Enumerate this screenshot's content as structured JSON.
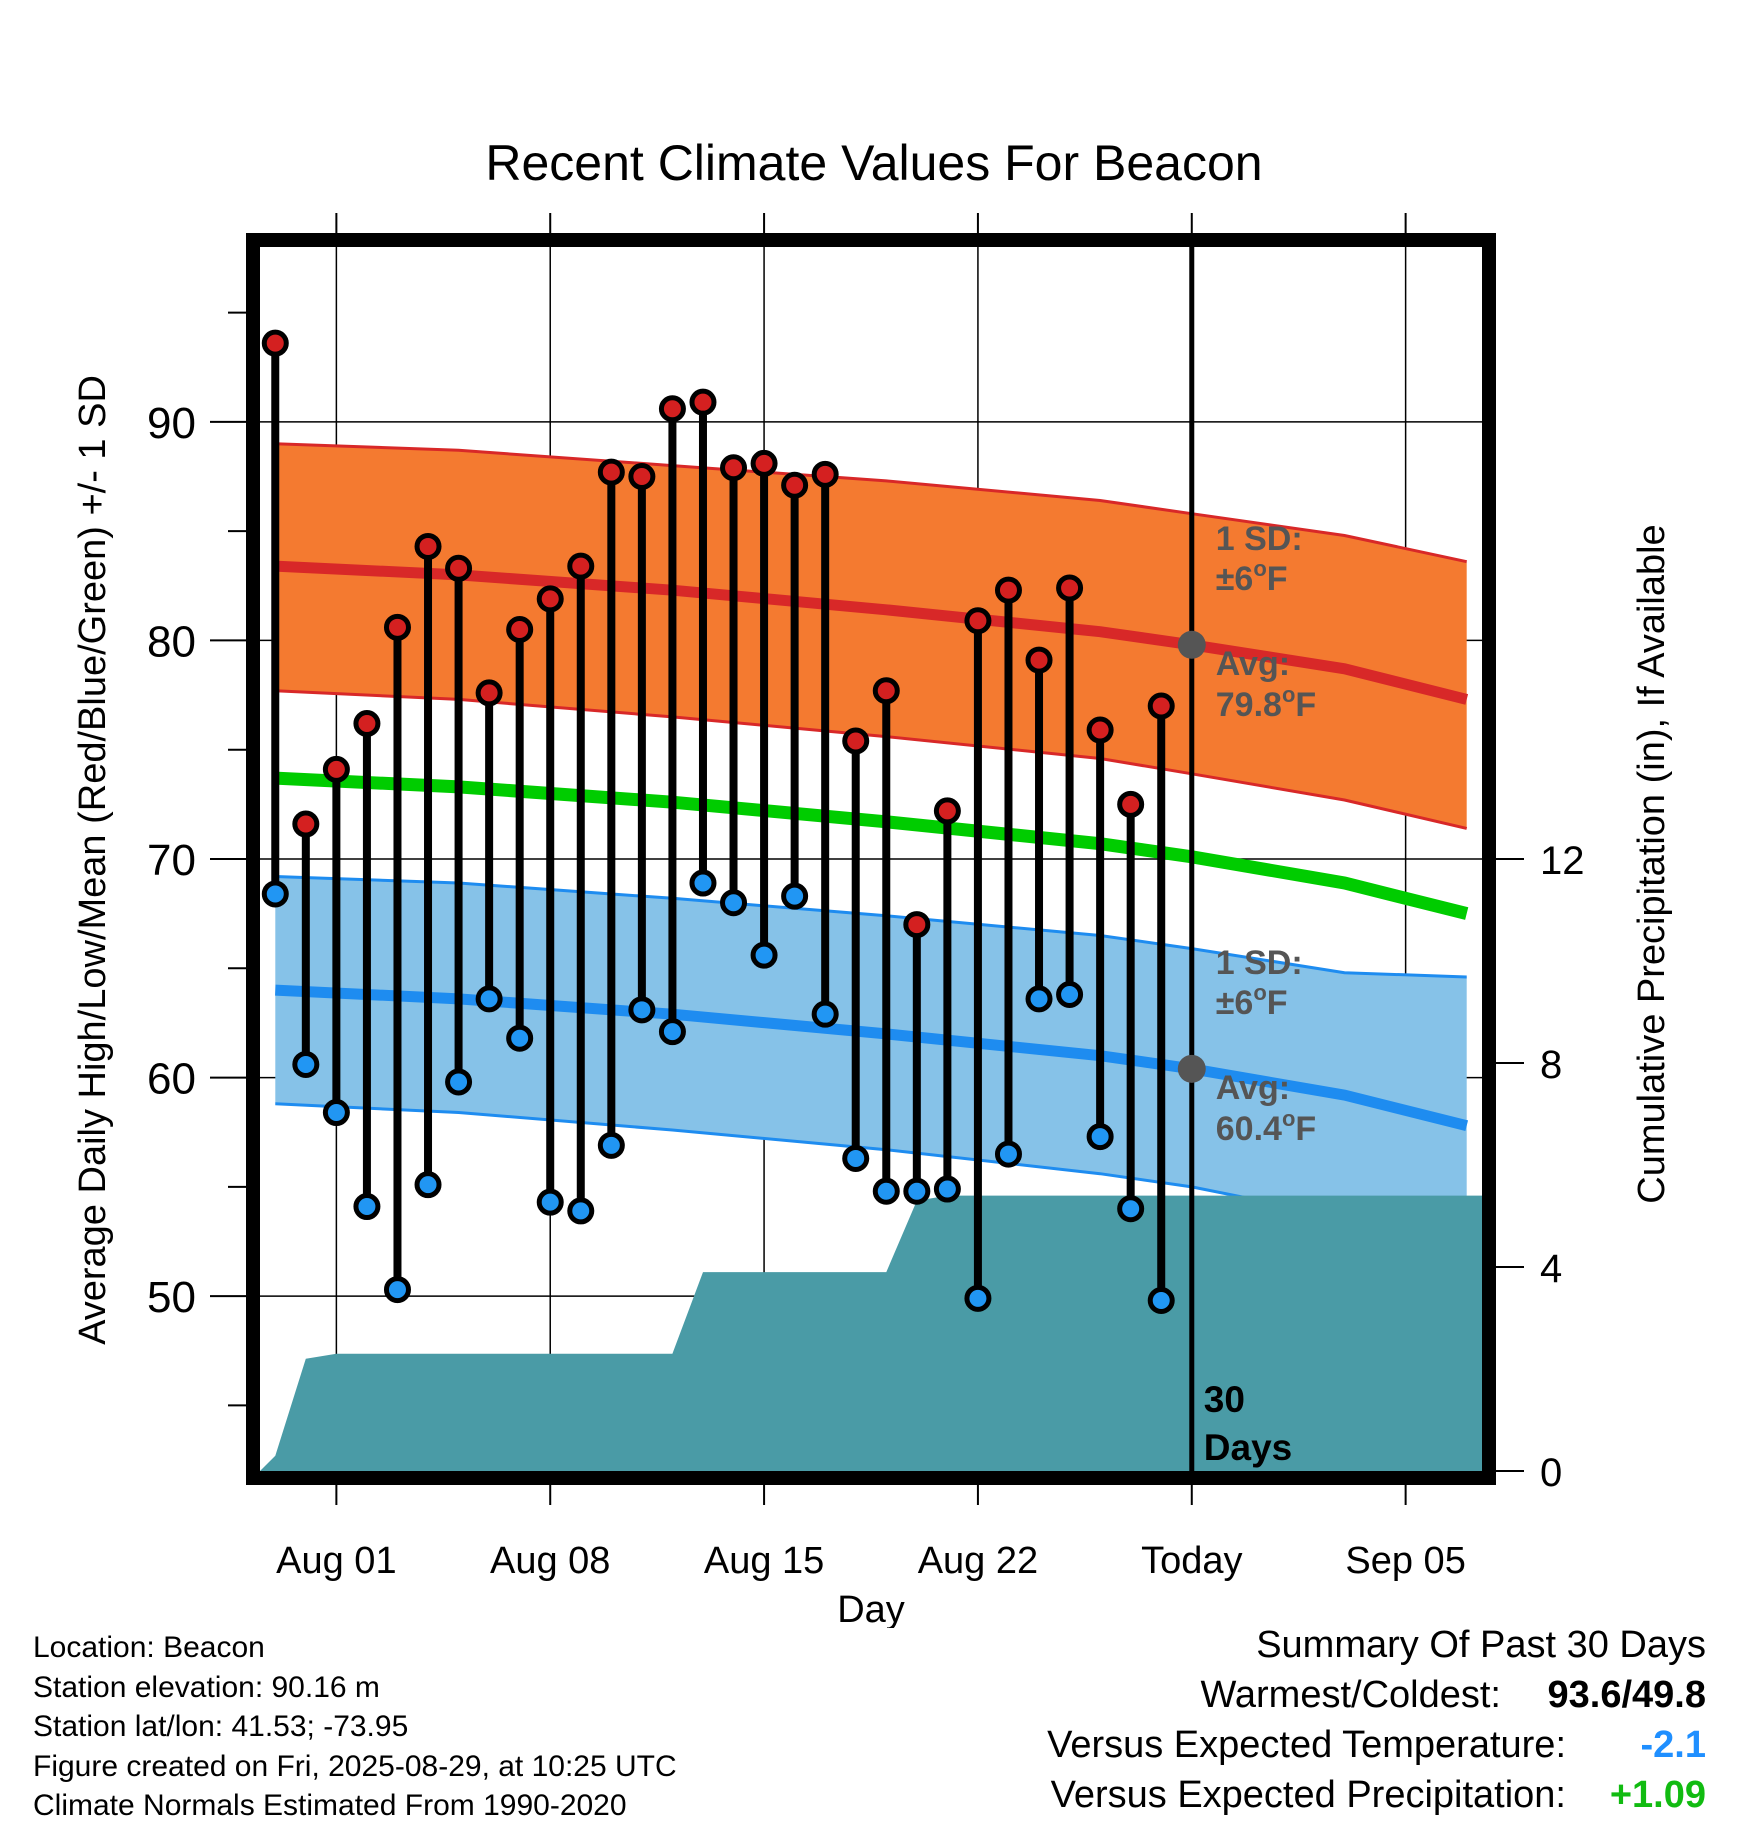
{
  "page": {
    "footer": [
      "Location: Beacon",
      "Station elevation: 90.16 m",
      "Station lat/lon: 41.53; -73.95",
      "Figure created on Fri, 2025-08-29, at 10:25 UTC",
      "Climate Normals Estimated From 1990-2020"
    ],
    "summary": {
      "heading": "Summary Of Past 30 Days",
      "warmest_coldest_label": "Warmest/Coldest:",
      "warmest_coldest_value": "93.6/49.8",
      "temp_label": "Versus Expected Temperature:",
      "temp_value": "-2.1",
      "temp_color": "#1f8fff",
      "precip_label": "Versus Expected Precipitation:",
      "precip_value": "+1.09",
      "precip_color": "#11bb11"
    }
  },
  "chart_data": {
    "type": "line",
    "title": "Recent Climate Values For Beacon",
    "xlabel": "Day",
    "ylabel": "Average Daily High/Low/Mean (Red/Blue/Green) +/- 1 SD",
    "ylabel_right": "Cumulative Precipitation (in), If Available",
    "x_tick_labels": [
      "Aug 01",
      "Aug 08",
      "Aug 15",
      "Aug 22",
      "Today",
      "Sep 05"
    ],
    "x_tick_dates": [
      "2025-08-01",
      "2025-08-08",
      "2025-08-15",
      "2025-08-22",
      "2025-08-29",
      "2025-09-05"
    ],
    "xlim": [
      "2025-07-29 12:00",
      "2025-09-07 12:00"
    ],
    "ylim": [
      42,
      98
    ],
    "y_ticks": [
      50,
      60,
      70,
      80,
      90
    ],
    "y_tick_labels": [
      "50",
      "60",
      "70",
      "80",
      "90"
    ],
    "y2lim": [
      0,
      24
    ],
    "y2_ticks": [
      0,
      4,
      8,
      12
    ],
    "y2_tick_labels": [
      "0",
      "4",
      "8",
      "12"
    ],
    "grid": true,
    "today_marker": {
      "date": "2025-08-29",
      "label": "30 Days"
    },
    "colors": {
      "high_band": "#f47a30",
      "high_line": "#d82828",
      "low_band": "#86c2e8",
      "low_line": "#1e8cf0",
      "mean_line": "#00cc00",
      "precip_fill": "#4a9ba6",
      "high_marker": "#d42020",
      "low_marker": "#2196f3",
      "annotation": "#555555"
    },
    "normal_high": {
      "name": "High",
      "dates": [
        "2025-07-30",
        "2025-08-05",
        "2025-08-12",
        "2025-08-19",
        "2025-08-26",
        "2025-08-29",
        "2025-09-03",
        "2025-09-07"
      ],
      "mean": [
        83.4,
        83.0,
        82.3,
        81.4,
        80.4,
        79.8,
        78.7,
        77.3
      ],
      "upper": [
        89.0,
        88.7,
        88.0,
        87.3,
        86.4,
        85.8,
        84.8,
        83.6
      ],
      "lower": [
        77.7,
        77.3,
        76.5,
        75.6,
        74.6,
        73.9,
        72.7,
        71.4
      ]
    },
    "normal_mean": {
      "name": "Mean",
      "dates": [
        "2025-07-30",
        "2025-08-05",
        "2025-08-12",
        "2025-08-19",
        "2025-08-26",
        "2025-08-29",
        "2025-09-03",
        "2025-09-07"
      ],
      "values": [
        73.7,
        73.3,
        72.6,
        71.7,
        70.7,
        70.1,
        68.9,
        67.5
      ]
    },
    "normal_low": {
      "name": "Low",
      "dates": [
        "2025-07-30",
        "2025-08-05",
        "2025-08-12",
        "2025-08-19",
        "2025-08-26",
        "2025-08-29",
        "2025-09-03",
        "2025-09-07"
      ],
      "mean": [
        64.0,
        63.6,
        62.9,
        62.0,
        61.0,
        60.4,
        59.2,
        57.8
      ],
      "upper": [
        69.2,
        68.9,
        68.2,
        67.4,
        66.5,
        65.9,
        64.8,
        64.6
      ],
      "lower": [
        58.8,
        58.4,
        57.6,
        56.7,
        55.6,
        55.0,
        53.6,
        51.2
      ]
    },
    "annotations": [
      {
        "date": "2025-08-29",
        "value": 79.8,
        "sd_label": "1 SD:",
        "sd_value": "±6",
        "avg_label": "Avg:",
        "avg_value": "79.8",
        "unit": "F"
      },
      {
        "date": "2025-08-29",
        "value": 60.4,
        "sd_label": "1 SD:",
        "sd_value": "±6",
        "avg_label": "Avg:",
        "avg_value": "60.4",
        "unit": "F"
      }
    ],
    "daily": {
      "dates": [
        "2025-07-30",
        "2025-07-31",
        "2025-08-01",
        "2025-08-02",
        "2025-08-03",
        "2025-08-04",
        "2025-08-05",
        "2025-08-06",
        "2025-08-07",
        "2025-08-08",
        "2025-08-09",
        "2025-08-10",
        "2025-08-11",
        "2025-08-12",
        "2025-08-13",
        "2025-08-14",
        "2025-08-15",
        "2025-08-16",
        "2025-08-17",
        "2025-08-18",
        "2025-08-19",
        "2025-08-20",
        "2025-08-21",
        "2025-08-22",
        "2025-08-23",
        "2025-08-24",
        "2025-08-25",
        "2025-08-26",
        "2025-08-27",
        "2025-08-28"
      ],
      "high": [
        93.6,
        71.6,
        74.1,
        76.2,
        80.6,
        84.3,
        83.3,
        77.6,
        80.5,
        81.9,
        83.4,
        87.7,
        87.5,
        90.6,
        90.9,
        87.9,
        88.1,
        87.1,
        87.6,
        75.4,
        77.7,
        67.0,
        72.2,
        80.9,
        82.3,
        79.1,
        82.4,
        75.9,
        72.5,
        77.0
      ],
      "low": [
        68.4,
        60.6,
        58.4,
        54.1,
        50.3,
        55.1,
        59.8,
        63.6,
        61.8,
        54.3,
        53.9,
        56.9,
        63.1,
        62.1,
        68.9,
        68.0,
        65.6,
        68.3,
        62.9,
        56.3,
        54.8,
        54.8,
        54.9,
        49.9,
        56.5,
        63.6,
        63.8,
        57.3,
        54.0,
        49.8
      ]
    },
    "precipitation": {
      "dates": [
        "2025-07-29 12:00",
        "2025-07-30",
        "2025-07-31",
        "2025-08-01",
        "2025-08-12",
        "2025-08-13",
        "2025-08-19",
        "2025-08-20",
        "2025-08-21",
        "2025-09-07 12:00"
      ],
      "cumulative": [
        0.0,
        0.3,
        2.2,
        2.3,
        2.3,
        3.9,
        3.9,
        5.3,
        5.4,
        5.4
      ]
    }
  }
}
